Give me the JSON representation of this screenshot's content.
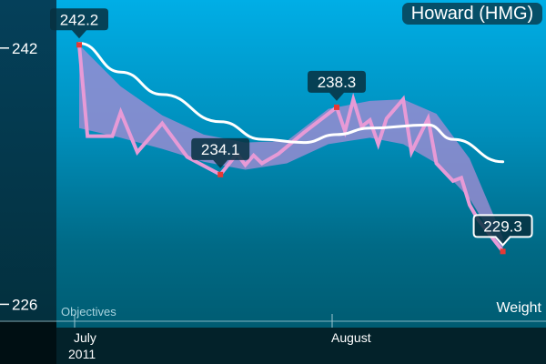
{
  "title": "Howard (HMG)",
  "chart_data": {
    "type": "line",
    "title": "Howard (HMG)",
    "ylabel": "Weight",
    "objectives_label": "Objectives",
    "ylim": [
      225,
      245
    ],
    "y_ticks": [
      242,
      226
    ],
    "x_range": [
      "2011-07-01",
      "2011-08-21"
    ],
    "x_ticks": [
      {
        "date": "2011-07-01",
        "label": "July",
        "sublabel": "2011"
      },
      {
        "date": "2011-08-01",
        "label": "August",
        "sublabel": ""
      }
    ],
    "grid": false,
    "colors": {
      "weight": "#e79ad6",
      "trend": "#ffffff",
      "band": "#a08cd2",
      "marker": "#e53935"
    },
    "weight": [
      [
        "2011-07-01",
        242.2
      ],
      [
        "2011-07-02",
        236.5
      ],
      [
        "2011-07-05",
        236.5
      ],
      [
        "2011-07-06",
        238.0
      ],
      [
        "2011-07-08",
        235.5
      ],
      [
        "2011-07-11",
        237.3
      ],
      [
        "2011-07-14",
        235.2
      ],
      [
        "2011-07-18",
        234.1
      ],
      [
        "2011-07-20",
        235.4
      ],
      [
        "2011-07-21",
        234.7
      ],
      [
        "2011-07-22",
        235.3
      ],
      [
        "2011-07-23",
        234.8
      ],
      [
        "2011-07-25",
        235.4
      ],
      [
        "2011-07-28",
        236.7
      ],
      [
        "2011-08-01",
        238.3
      ],
      [
        "2011-08-02",
        236.8
      ],
      [
        "2011-08-03",
        238.8
      ],
      [
        "2011-08-04",
        237.1
      ],
      [
        "2011-08-05",
        237.5
      ],
      [
        "2011-08-06",
        236.0
      ],
      [
        "2011-08-07",
        237.6
      ],
      [
        "2011-08-09",
        238.8
      ],
      [
        "2011-08-10",
        235.5
      ],
      [
        "2011-08-12",
        237.6
      ],
      [
        "2011-08-13",
        234.8
      ],
      [
        "2011-08-15",
        233.7
      ],
      [
        "2011-08-16",
        233.9
      ],
      [
        "2011-08-17",
        232.2
      ],
      [
        "2011-08-18",
        231.3
      ],
      [
        "2011-08-21",
        229.3
      ]
    ],
    "trend": [
      [
        "2011-07-01",
        242.3
      ],
      [
        "2011-07-06",
        240.5
      ],
      [
        "2011-07-11",
        239.1
      ],
      [
        "2011-07-18",
        237.4
      ],
      [
        "2011-07-23",
        236.3
      ],
      [
        "2011-07-28",
        236.1
      ],
      [
        "2011-08-01",
        236.6
      ],
      [
        "2011-08-05",
        237.0
      ],
      [
        "2011-08-12",
        237.2
      ],
      [
        "2011-08-15",
        236.3
      ],
      [
        "2011-08-21",
        234.9
      ]
    ],
    "band": [
      [
        "2011-07-01",
        242.2,
        237.0
      ],
      [
        "2011-07-06",
        239.6,
        236.4
      ],
      [
        "2011-07-11",
        237.8,
        235.7
      ],
      [
        "2011-07-16",
        236.6,
        234.9
      ],
      [
        "2011-07-21",
        236.1,
        234.4
      ],
      [
        "2011-07-26",
        236.2,
        234.8
      ],
      [
        "2011-07-31",
        238.2,
        236.0
      ],
      [
        "2011-08-05",
        238.7,
        236.4
      ],
      [
        "2011-08-09",
        238.8,
        236.0
      ],
      [
        "2011-08-13",
        237.9,
        234.8
      ],
      [
        "2011-08-17",
        235.1,
        232.6
      ],
      [
        "2011-08-21",
        230.2,
        229.2
      ]
    ],
    "callouts": [
      {
        "date": "2011-07-01",
        "value": 242.2,
        "label": "242.2",
        "selected": false
      },
      {
        "date": "2011-07-18",
        "value": 234.1,
        "label": "234.1",
        "selected": false
      },
      {
        "date": "2011-08-01",
        "value": 238.3,
        "label": "238.3",
        "selected": false
      },
      {
        "date": "2011-08-21",
        "value": 229.3,
        "label": "229.3",
        "selected": true
      }
    ]
  }
}
